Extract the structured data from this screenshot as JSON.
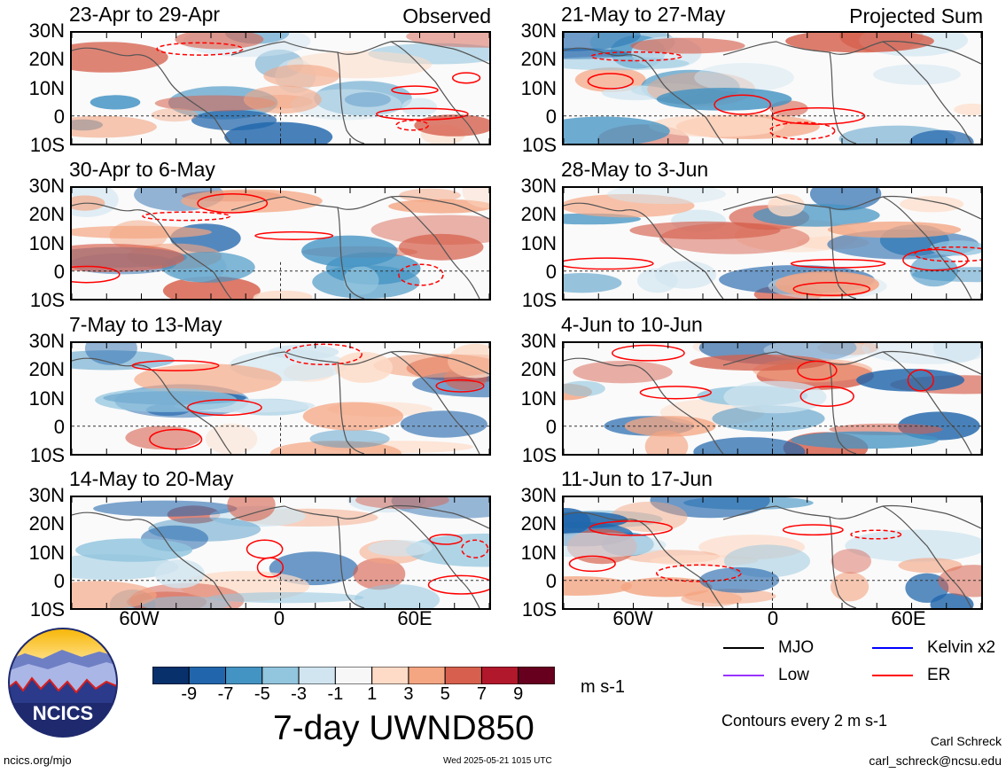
{
  "panels": [
    {
      "title": "23-Apr to 29-Apr",
      "tag": "Observed"
    },
    {
      "title": "21-May to 27-May",
      "tag": "Projected Sum"
    },
    {
      "title": "30-Apr to 6-May",
      "tag": ""
    },
    {
      "title": "28-May to 3-Jun",
      "tag": ""
    },
    {
      "title": "7-May to 13-May",
      "tag": ""
    },
    {
      "title": "4-Jun to 10-Jun",
      "tag": ""
    },
    {
      "title": "14-May to 20-May",
      "tag": ""
    },
    {
      "title": "11-Jun to 17-Jun",
      "tag": ""
    }
  ],
  "lat_labels": [
    "30N",
    "20N",
    "10N",
    "0",
    "10S"
  ],
  "lon_labels": [
    "60W",
    "0",
    "60E"
  ],
  "colorbar": {
    "ticks": [
      "-9",
      "-7",
      "-5",
      "-3",
      "-1",
      "1",
      "3",
      "5",
      "7",
      "9"
    ],
    "colors": [
      "#08306b",
      "#2166ac",
      "#4393c3",
      "#92c5de",
      "#d1e5f0",
      "#f7f7f7",
      "#fddbc7",
      "#f4a582",
      "#d6604d",
      "#b2182b",
      "#67001f"
    ],
    "units": "m s-1"
  },
  "main_title": "7-day UWND850",
  "legend": {
    "items": [
      {
        "label": "MJO",
        "color": "#000000"
      },
      {
        "label": "Kelvin x2",
        "color": "#0000ff"
      },
      {
        "label": "Low",
        "color": "#9933ff"
      },
      {
        "label": "ER",
        "color": "#ff0000"
      }
    ],
    "contour_note": "Contours every 2 m s-1"
  },
  "logo_text": "NCICS",
  "footer": {
    "left": "ncics.org/mjo",
    "center": "Wed 2025-05-21 1015 UTC",
    "author": "Carl Schreck",
    "email": "carl_schreck@ncsu.edu"
  }
}
